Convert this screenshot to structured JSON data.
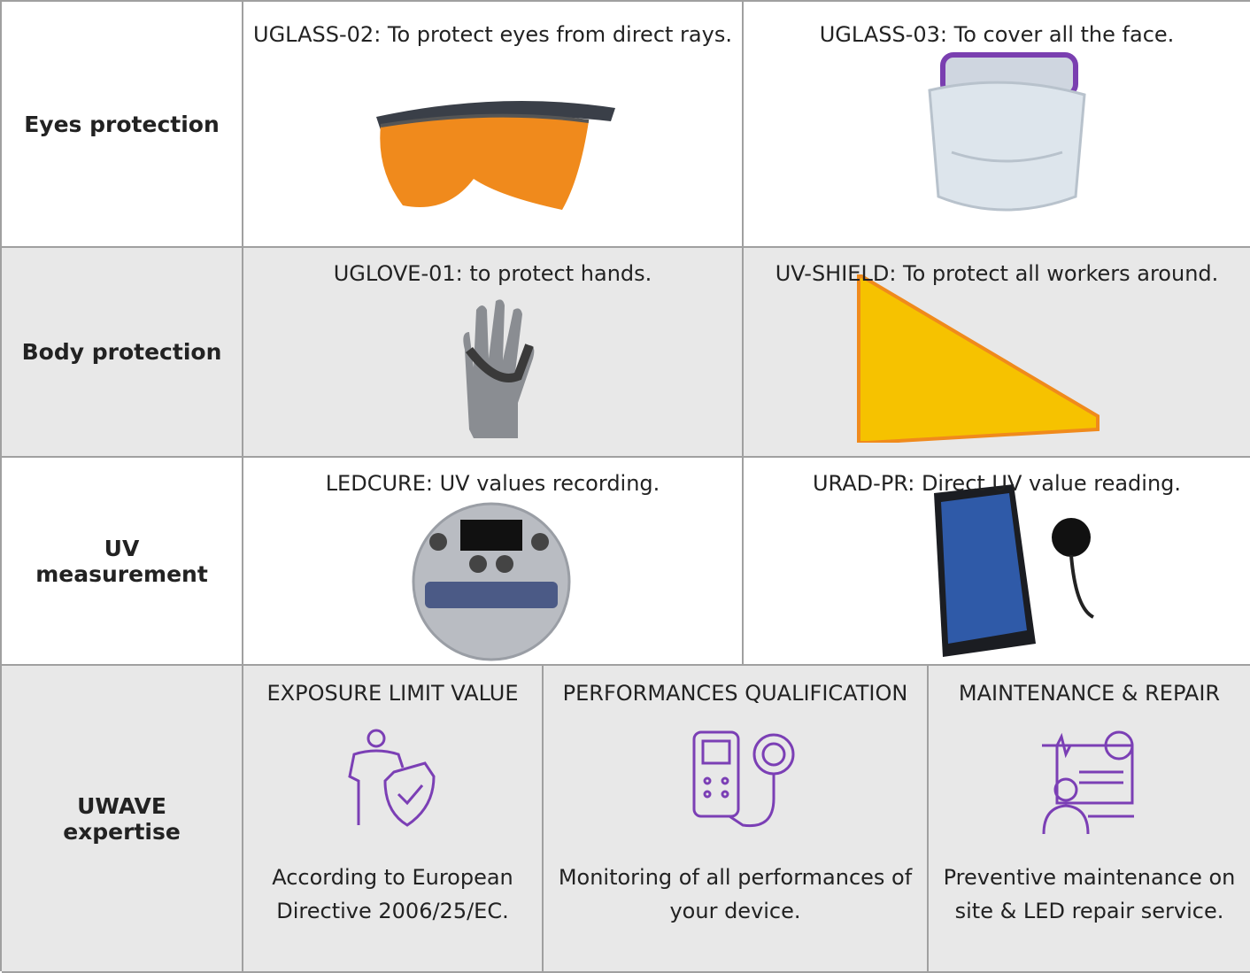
{
  "rows": [
    {
      "label": "Eyes protection",
      "cells": [
        "UGLASS-02: To protect eyes from direct rays.",
        "UGLASS-03: To cover all the face."
      ]
    },
    {
      "label": "Body protection",
      "cells": [
        "UGLOVE-01: to protect hands.",
        "UV-SHIELD: To protect all workers around."
      ]
    },
    {
      "label": "UV measurement",
      "cells": [
        "LEDCURE: UV values recording.",
        "URAD-PR: Direct UV value reading."
      ]
    }
  ],
  "expertise": {
    "label": "UWAVE expertise",
    "cells": [
      {
        "title": "EXPOSURE LIMIT VALUE",
        "text": "According to European Directive 2006/25/EC."
      },
      {
        "title": "PERFORMANCES QUALIFICATION",
        "text": "Monitoring of all performances of your device."
      },
      {
        "title": "MAINTENANCE & REPAIR",
        "text": "Preventive maintenance on site & LED repair service."
      }
    ]
  }
}
